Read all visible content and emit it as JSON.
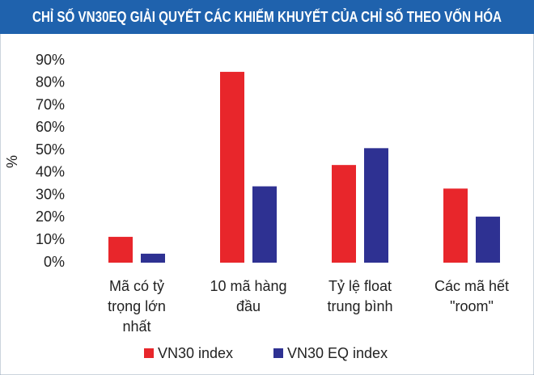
{
  "chart_data": {
    "type": "bar",
    "title": "CHỈ SỐ VN30EQ GIẢI QUYẾT CÁC KHIẾM KHUYẾT CỦA CHỈ SỐ THEO VỐN HÓA",
    "y_label": "%",
    "categories": [
      [
        "Mã có tỷ",
        "trọng lớn",
        "nhất"
      ],
      [
        "10 mã hàng",
        "đầu"
      ],
      [
        "Tỷ lệ float",
        "trung bình"
      ],
      [
        "Các mã hết",
        "\"room\""
      ]
    ],
    "series": [
      {
        "name": "VN30 index",
        "color": "#e8262b",
        "values": [
          11.5,
          85,
          43.5,
          33
        ]
      },
      {
        "name": "VN30 EQ index",
        "color": "#2e3192",
        "values": [
          4,
          34,
          51,
          20.5
        ]
      }
    ],
    "ylim": [
      0,
      90
    ],
    "yticks": [
      {
        "value": 0,
        "label": "0%"
      },
      {
        "value": 10,
        "label": "10%"
      },
      {
        "value": 20,
        "label": "20%"
      },
      {
        "value": 30,
        "label": "30%"
      },
      {
        "value": 40,
        "label": "40%"
      },
      {
        "value": 50,
        "label": "50%"
      },
      {
        "value": 60,
        "label": "60%"
      },
      {
        "value": 70,
        "label": "70%"
      },
      {
        "value": 80,
        "label": "80%"
      },
      {
        "value": 90,
        "label": "90%"
      }
    ],
    "legend": "bottom"
  }
}
